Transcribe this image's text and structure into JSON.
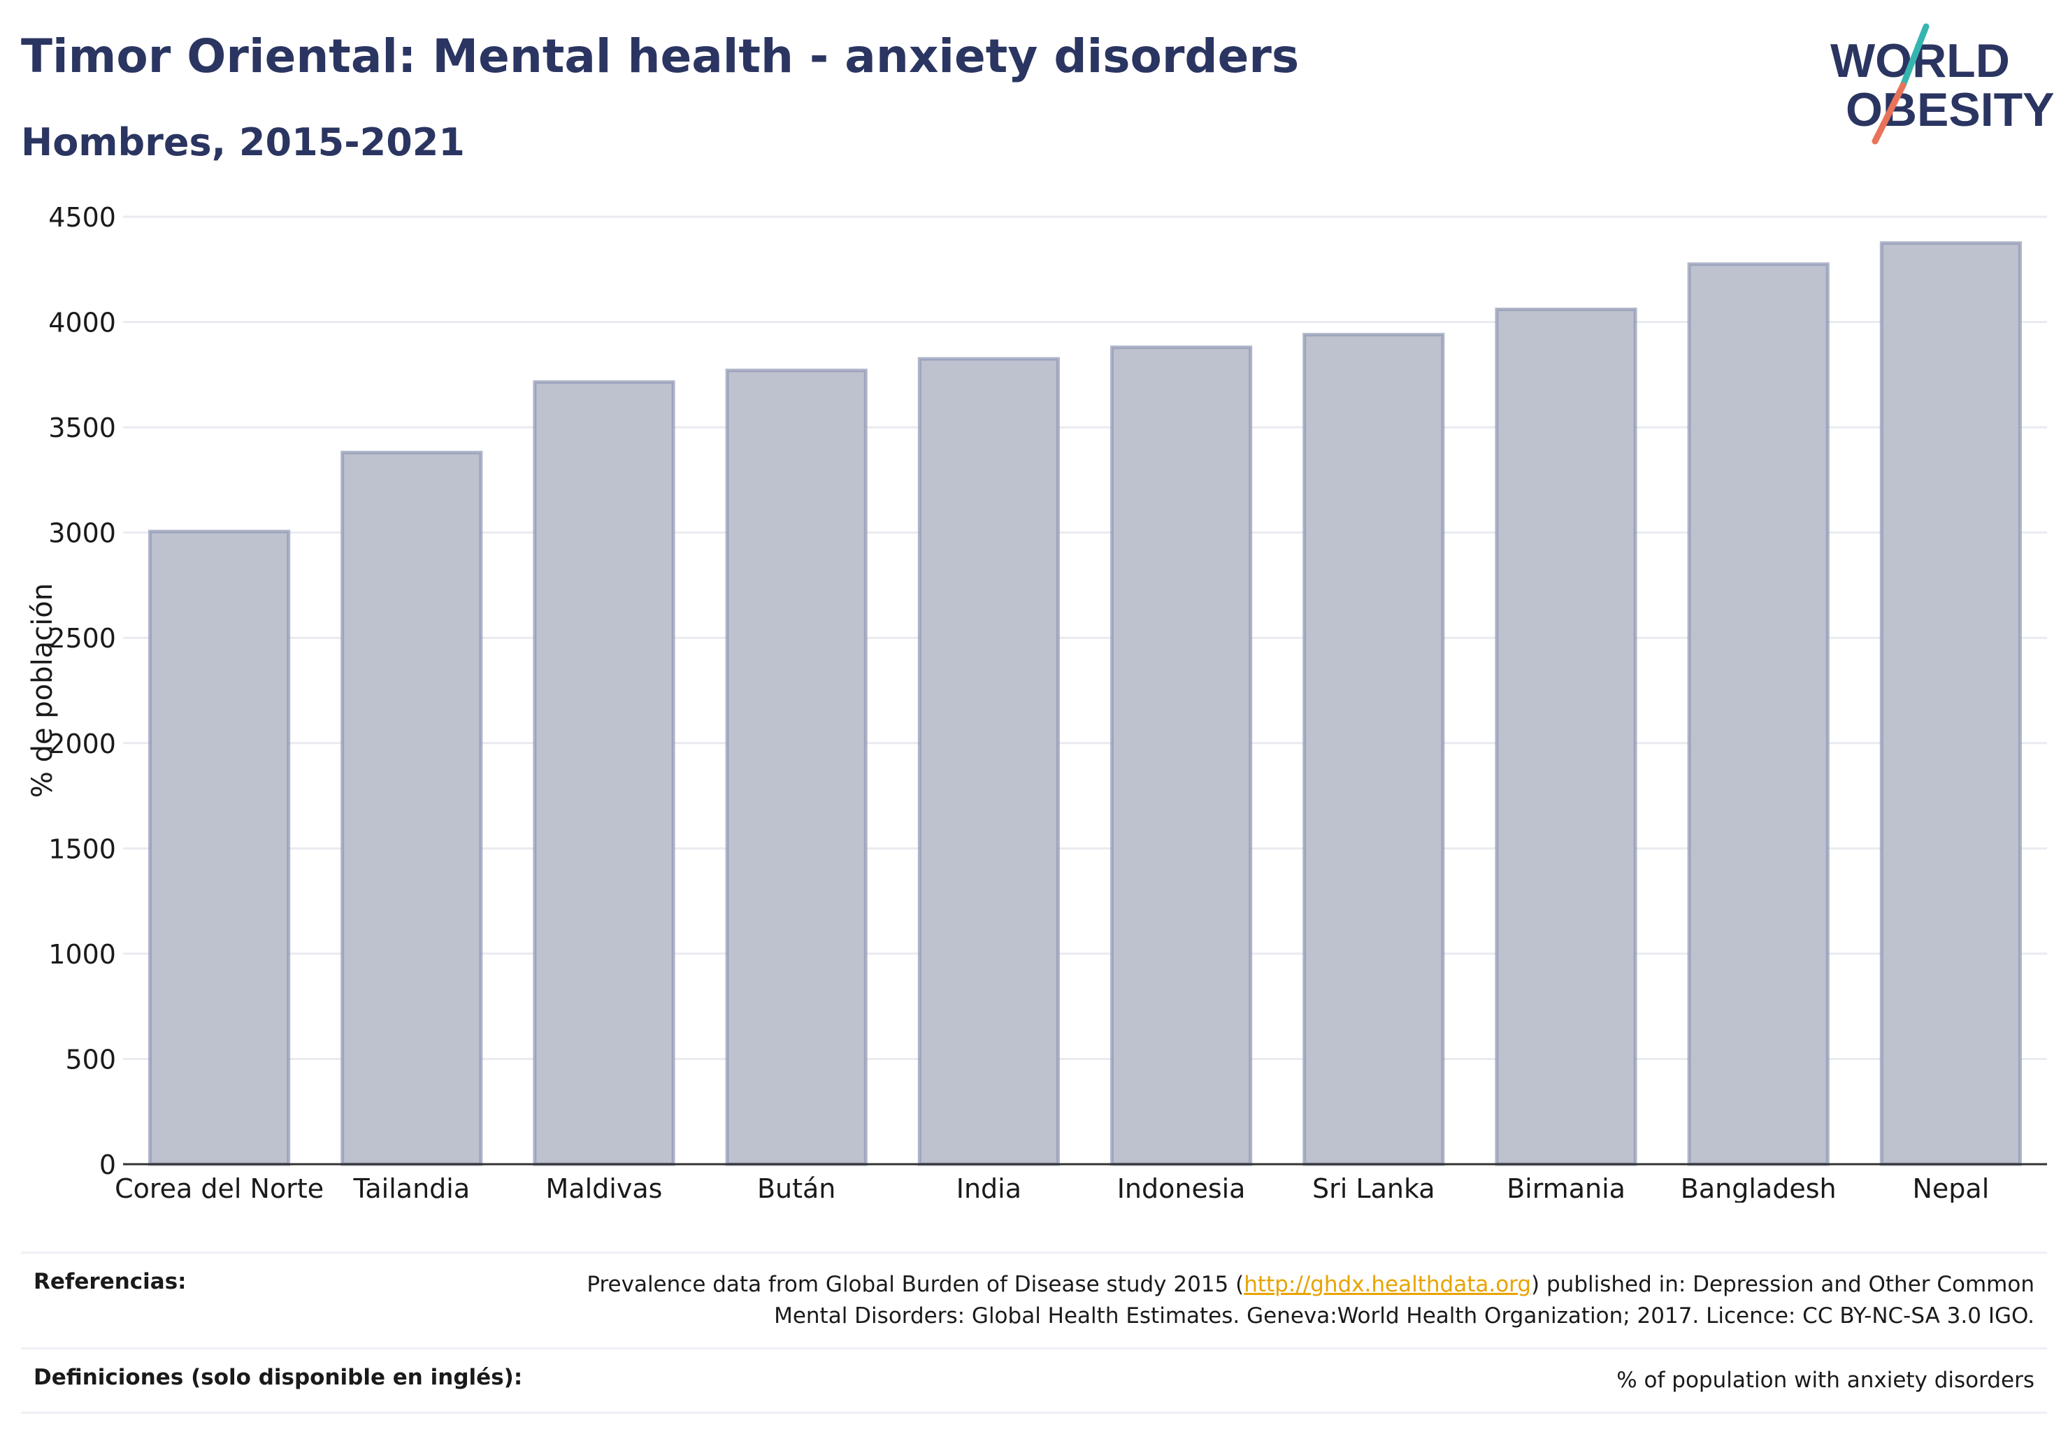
{
  "header": {
    "title": "Timor Oriental: Mental health - anxiety disorders",
    "subtitle": "Hombres, 2015-2021"
  },
  "logo": {
    "line1": "WORLD",
    "line2": "OBESITY",
    "colors": {
      "text": "#2b3561",
      "slash_top": "#36b5b0",
      "slash_bottom": "#e8735a"
    }
  },
  "chart_data": {
    "type": "bar",
    "categories": [
      "Corea del Norte",
      "Tailandia",
      "Maldivas",
      "Bután",
      "India",
      "Indonesia",
      "Sri Lanka",
      "Birmania",
      "Bangladesh",
      "Nepal"
    ],
    "values": [
      3005,
      3380,
      3715,
      3770,
      3825,
      3880,
      3940,
      4060,
      4275,
      4375
    ],
    "ylabel": "% de población",
    "ylim": [
      0,
      4500
    ],
    "yticks": [
      0,
      500,
      1000,
      1500,
      2000,
      2500,
      3000,
      3500,
      4000,
      4500
    ],
    "grid": true,
    "colors": {
      "bar_fill": "#bec2cf",
      "bar_stroke": "#8e97b4",
      "axis": "#333333",
      "grid": "#e9ebf0"
    }
  },
  "references": {
    "ref_label": "Referencias:",
    "ref_text_before": "Prevalence data from Global Burden of Disease study 2015 (",
    "ref_link": "http://ghdx.healthdata.org",
    "ref_text_after": ") published in: Depression and Other Common",
    "ref_text_line2": "Mental Disorders: Global Health Estimates. Geneva:World Health Organization; 2017. Licence: CC BY-NC-SA 3.0 IGO.",
    "def_label": "Definiciones (solo disponible en inglés):",
    "def_text": "% of population with anxiety disorders"
  }
}
